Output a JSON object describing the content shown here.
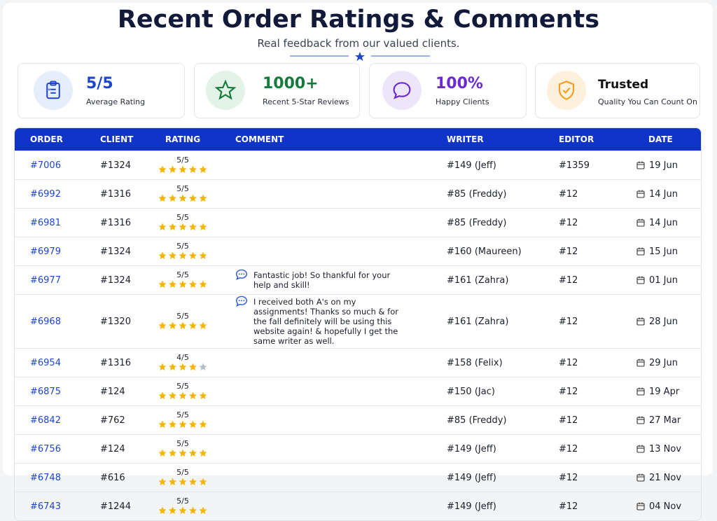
{
  "header": {
    "title": "Recent Order Ratings & Comments",
    "subtitle": "Real feedback from our valued clients."
  },
  "stats": [
    {
      "value": "5/5",
      "label": "Average Rating"
    },
    {
      "value": "1000+",
      "label": "Recent 5-Star Reviews"
    },
    {
      "value": "100%",
      "label": "Happy Clients"
    },
    {
      "value": "Trusted",
      "label": "Quality You Can Count On"
    }
  ],
  "table": {
    "columns": [
      "ORDER",
      "CLIENT",
      "RATING",
      "COMMENT",
      "WRITER",
      "EDITOR",
      "DATE"
    ],
    "rows": [
      [
        "#7006",
        "#1324",
        "5/5",
        null,
        "#149 (Jeff)",
        "#1359",
        "19 Jun"
      ],
      [
        "#6992",
        "#1316",
        "5/5",
        null,
        "#85 (Freddy)",
        "#12",
        "14 Jun"
      ],
      [
        "#6981",
        "#1316",
        "5/5",
        null,
        "#85 (Freddy)",
        "#12",
        "14 Jun"
      ],
      [
        "#6979",
        "#1324",
        "5/5",
        null,
        "#160 (Maureen)",
        "#12",
        "15 Jun"
      ],
      [
        "#6977",
        "#1324",
        "5/5",
        "Fantastic job! So thankful for your help and skill!",
        "#161 (Zahra)",
        "#12",
        "01 Jun"
      ],
      [
        "#6968",
        "#1320",
        "5/5",
        "I received both A's on my assignments! Thanks so much & for the fall definitely will be using this website again! & hopefully I get the same writer as well.",
        "#161 (Zahra)",
        "#12",
        "28 Jun"
      ],
      [
        "#6954",
        "#1316",
        "4/5",
        null,
        "#158 (Felix)",
        "#12",
        "29 Jun"
      ],
      [
        "#6875",
        "#124",
        "5/5",
        null,
        "#150 (Jac)",
        "#12",
        "19 Apr"
      ],
      [
        "#6842",
        "#762",
        "5/5",
        null,
        "#85 (Freddy)",
        "#12",
        "27 Mar"
      ],
      [
        "#6756",
        "#124",
        "5/5",
        null,
        "#149 (Jeff)",
        "#12",
        "13 Nov"
      ],
      [
        "#6748",
        "#616",
        "5/5",
        null,
        "#149 (Jeff)",
        "#12",
        "21 Nov"
      ],
      [
        "#6743",
        "#1244",
        "5/5",
        null,
        "#149 (Jeff)",
        "#12",
        "04 Nov"
      ]
    ]
  }
}
